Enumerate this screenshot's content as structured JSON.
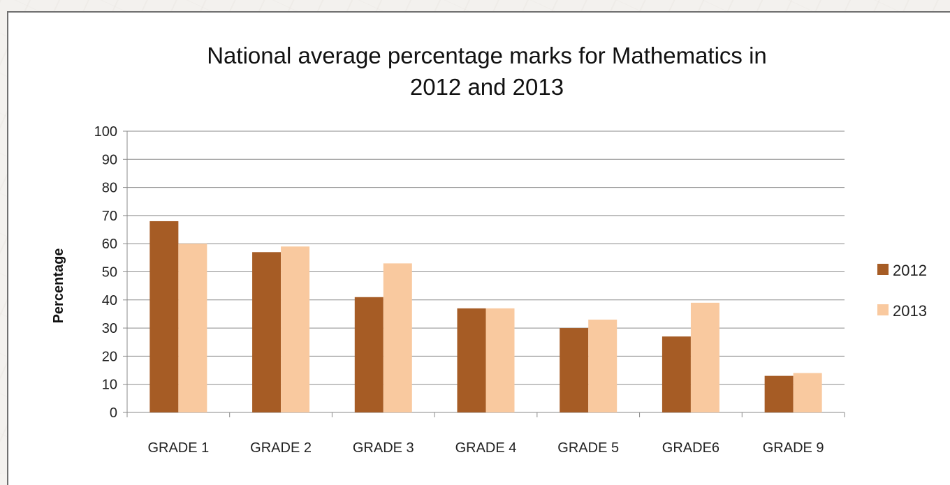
{
  "chart_data": {
    "type": "bar",
    "title_line1": "National average percentage marks for Mathematics in",
    "title_line2": "2012 and 2013",
    "xlabel": "",
    "ylabel": "Percentage",
    "ylim": [
      0,
      100
    ],
    "yticks": [
      0,
      10,
      20,
      30,
      40,
      50,
      60,
      70,
      80,
      90,
      100
    ],
    "grid": true,
    "legend_position": "right",
    "categories": [
      "GRADE 1",
      "GRADE 2",
      "GRADE 3",
      "GRADE 4",
      "GRADE 5",
      "GRADE6",
      "GRADE 9"
    ],
    "series": [
      {
        "name": "2012",
        "color": "#a65c25",
        "values": [
          68,
          57,
          41,
          37,
          30,
          27,
          13
        ]
      },
      {
        "name": "2013",
        "color": "#f9c99f",
        "values": [
          60,
          59,
          53,
          37,
          33,
          39,
          14
        ]
      }
    ]
  }
}
